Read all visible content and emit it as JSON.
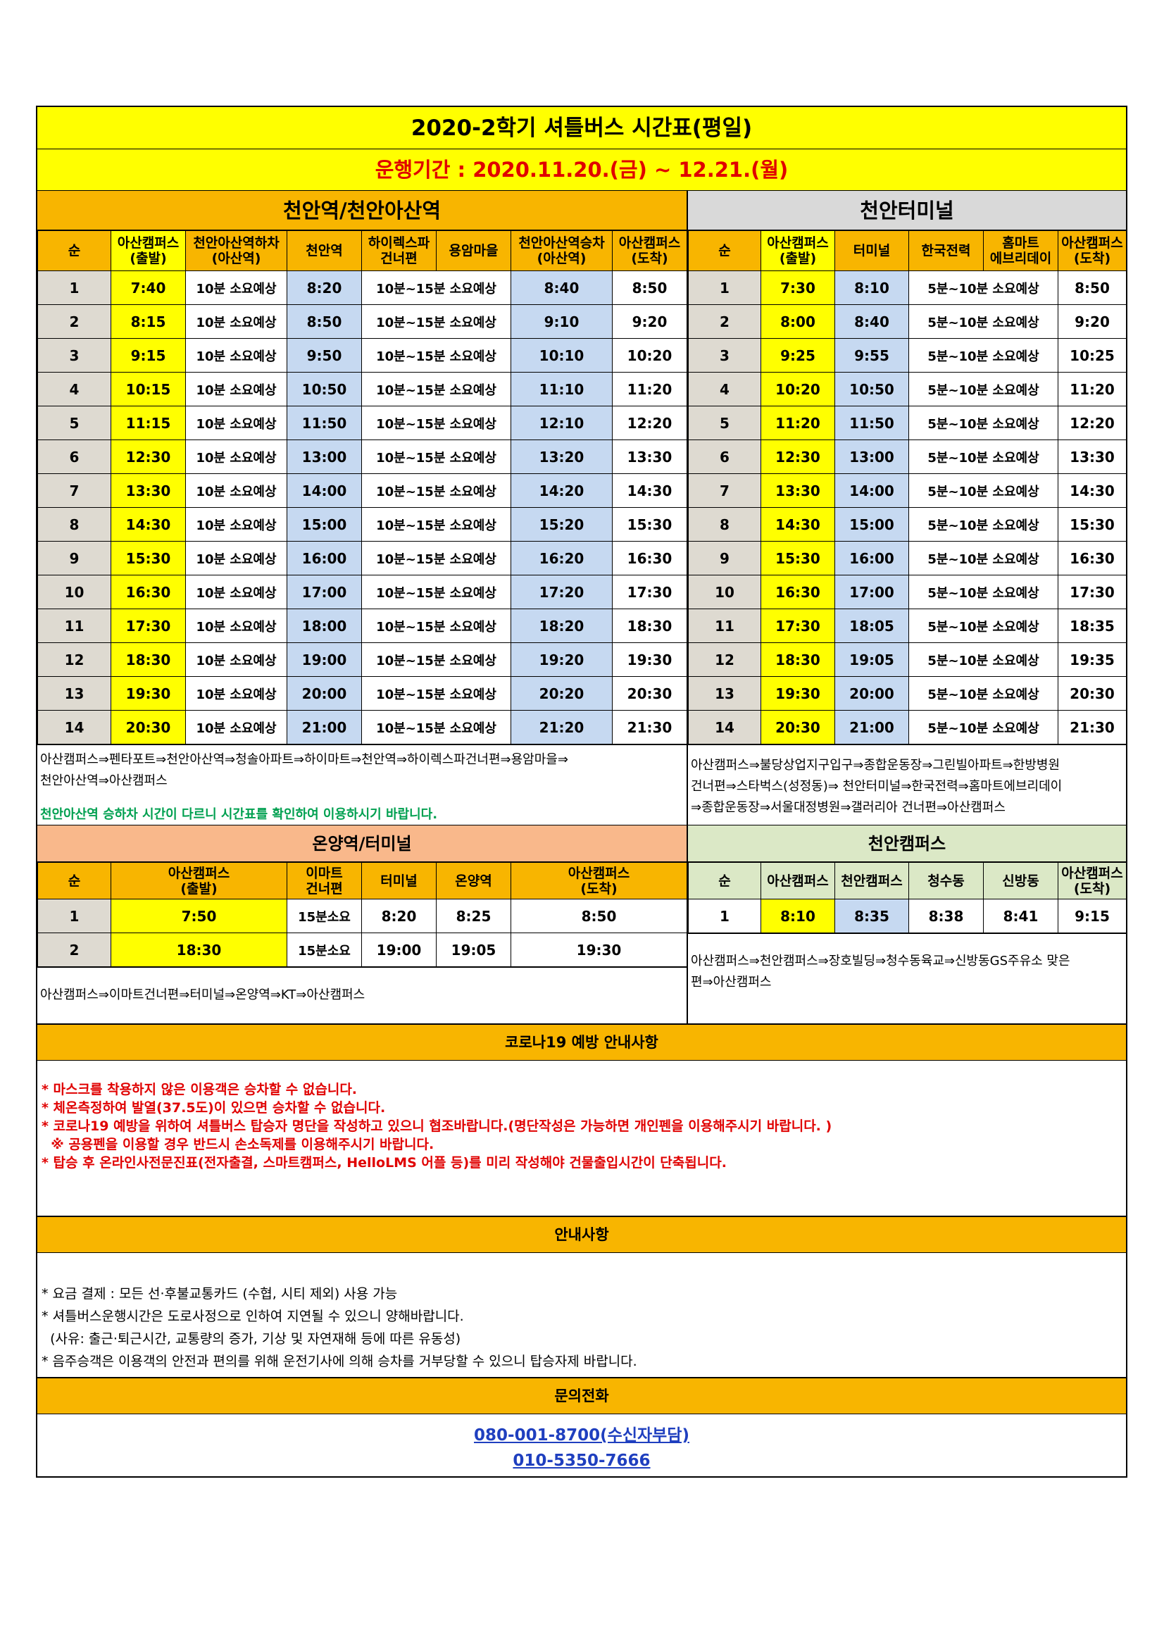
{
  "title": "2020-2학기 셔틀버스 시간표(평일)",
  "period": "운행기간 : 2020.11.20.(금) ~ 12.21.(월)",
  "cheonan_station": {
    "section_title": "천안역/천안아산역",
    "headers": [
      "순",
      "아산캠퍼스\n(출발)",
      "천안아산역하차\n(아산역)",
      "천안역",
      "하이렉스파\n건너편",
      "용암마을",
      "천안아산역승차\n(아산역)",
      "아산캠퍼스\n(도착)"
    ],
    "rows": [
      [
        "1",
        "7:40",
        "10분 소요예상",
        "8:20",
        "10분~15분 소요예상",
        "8:40",
        "8:50"
      ],
      [
        "2",
        "8:15",
        "10분 소요예상",
        "8:50",
        "10분~15분 소요예상",
        "9:10",
        "9:20"
      ],
      [
        "3",
        "9:15",
        "10분 소요예상",
        "9:50",
        "10분~15분 소요예상",
        "10:10",
        "10:20"
      ],
      [
        "4",
        "10:15",
        "10분 소요예상",
        "10:50",
        "10분~15분 소요예상",
        "11:10",
        "11:20"
      ],
      [
        "5",
        "11:15",
        "10분 소요예상",
        "11:50",
        "10분~15분 소요예상",
        "12:10",
        "12:20"
      ],
      [
        "6",
        "12:30",
        "10분 소요예상",
        "13:00",
        "10분~15분 소요예상",
        "13:20",
        "13:30"
      ],
      [
        "7",
        "13:30",
        "10분 소요예상",
        "14:00",
        "10분~15분 소요예상",
        "14:20",
        "14:30"
      ],
      [
        "8",
        "14:30",
        "10분 소요예상",
        "15:00",
        "10분~15분 소요예상",
        "15:20",
        "15:30"
      ],
      [
        "9",
        "15:30",
        "10분 소요예상",
        "16:00",
        "10분~15분 소요예상",
        "16:20",
        "16:30"
      ],
      [
        "10",
        "16:30",
        "10분 소요예상",
        "17:00",
        "10분~15분 소요예상",
        "17:20",
        "17:30"
      ],
      [
        "11",
        "17:30",
        "10분 소요예상",
        "18:00",
        "10분~15분 소요예상",
        "18:20",
        "18:30"
      ],
      [
        "12",
        "18:30",
        "10분 소요예상",
        "19:00",
        "10분~15분 소요예상",
        "19:20",
        "19:30"
      ],
      [
        "13",
        "19:30",
        "10분 소요예상",
        "20:00",
        "10분~15분 소요예상",
        "20:20",
        "20:30"
      ],
      [
        "14",
        "20:30",
        "10분 소요예상",
        "21:00",
        "10분~15분 소요예상",
        "21:20",
        "21:30"
      ]
    ],
    "route_line1": "아산캠퍼스⇒펜타포트⇒천안아산역⇒청솔아파트⇒하이마트⇒천안역⇒하이렉스파건너편⇒용암마을⇒",
    "route_line2": "천안아산역⇒아산캠퍼스",
    "notice": "천안아산역 승하차 시간이 다르니 시간표를 확인하여 이용하시기 바랍니다."
  },
  "terminal": {
    "section_title": "천안터미널",
    "headers": [
      "순",
      "아산캠퍼스\n(출발)",
      "터미널",
      "한국전력",
      "홈마트\n에브리데이",
      "아산캠퍼스\n(도착)"
    ],
    "rows": [
      [
        "1",
        "7:30",
        "8:10",
        "5분~10분 소요예상",
        "8:50"
      ],
      [
        "2",
        "8:00",
        "8:40",
        "5분~10분 소요예상",
        "9:20"
      ],
      [
        "3",
        "9:25",
        "9:55",
        "5분~10분 소요예상",
        "10:25"
      ],
      [
        "4",
        "10:20",
        "10:50",
        "5분~10분 소요예상",
        "11:20"
      ],
      [
        "5",
        "11:20",
        "11:50",
        "5분~10분 소요예상",
        "12:20"
      ],
      [
        "6",
        "12:30",
        "13:00",
        "5분~10분 소요예상",
        "13:30"
      ],
      [
        "7",
        "13:30",
        "14:00",
        "5분~10분 소요예상",
        "14:30"
      ],
      [
        "8",
        "14:30",
        "15:00",
        "5분~10분 소요예상",
        "15:30"
      ],
      [
        "9",
        "15:30",
        "16:00",
        "5분~10분 소요예상",
        "16:30"
      ],
      [
        "10",
        "16:30",
        "17:00",
        "5분~10분 소요예상",
        "17:30"
      ],
      [
        "11",
        "17:30",
        "18:05",
        "5분~10분 소요예상",
        "18:35"
      ],
      [
        "12",
        "18:30",
        "19:05",
        "5분~10분 소요예상",
        "19:35"
      ],
      [
        "13",
        "19:30",
        "20:00",
        "5분~10분 소요예상",
        "20:30"
      ],
      [
        "14",
        "20:30",
        "21:00",
        "5분~10분 소요예상",
        "21:30"
      ]
    ],
    "route_line1": "아산캠퍼스⇒불당상업지구입구⇒종합운동장⇒그린빌아파트⇒한방병원",
    "route_line2": "건너편⇒스타벅스(성정동)⇒ 천안터미널⇒한국전력⇒홈마트에브리데이",
    "route_line3": "⇒종합운동장⇒서울대정병원⇒갤러리아 건너편⇒아산캠퍼스"
  },
  "onyang": {
    "section_title": "온양역/터미널",
    "headers": [
      "순",
      "아산캠퍼스\n(출발)",
      "이마트\n건너편",
      "터미널",
      "온양역",
      "아산캠퍼스\n(도착)"
    ],
    "rows": [
      [
        "1",
        "7:50",
        "15분소요",
        "8:20",
        "8:25",
        "8:50"
      ],
      [
        "2",
        "18:30",
        "15분소요",
        "19:00",
        "19:05",
        "19:30"
      ]
    ],
    "route": "아산캠퍼스⇒이마트건너편⇒터미널⇒온양역⇒KT⇒아산캠퍼스"
  },
  "cheonan_campus": {
    "section_title": "천안캠퍼스",
    "headers": [
      "순",
      "아산캠퍼스",
      "천안캠퍼스",
      "청수동",
      "신방동",
      "아산캠퍼스\n(도착)"
    ],
    "rows": [
      [
        "1",
        "8:10",
        "8:35",
        "8:38",
        "8:41",
        "9:15"
      ]
    ],
    "route_line1": "아산캠퍼스⇒천안캠퍼스⇒장호빌딩⇒청수동육교⇒신방동GS주유소 맞은",
    "route_line2": "편⇒아산캠퍼스"
  },
  "covid": {
    "title": "코로나19 예방 안내사항",
    "lines": [
      "* 마스크를 착용하지 않은 이용객은 승차할 수 없습니다.",
      "* 체온측정하여 발열(37.5도)이 있으면 승차할 수 없습니다.",
      "* 코로나19 예방을 위하여 셔틀버스 탑승자 명단을 작성하고 있으니 협조바랍니다.(명단작성은 가능하면 개인펜을 이용해주시기 바랍니다. )",
      "  ※ 공용펜을 이용할 경우 반드시 손소독제를 이용해주시기 바랍니다.",
      "* 탑승 후 온라인사전문진표(전자출결, 스마트캠퍼스, HelloLMS 어플 등)를 미리 작성해야 건물출입시간이 단축됩니다."
    ]
  },
  "info": {
    "title": "안내사항",
    "lines": [
      "* 요금 결제 : 모든 선·후불교통카드 (수협, 시티 제외) 사용 가능",
      "* 셔틀버스운행시간은 도로사정으로 인하여 지연될 수 있으니 양해바랍니다.",
      "  (사유: 출근·퇴근시간, 교통량의 증가, 기상 및 자연재해 등에 따른 유동성)",
      "* 음주승객은 이용객의 안전과 편의를 위해 운전기사에 의해 승차를 거부당할 수 있으니 탑승자제 바랍니다."
    ]
  },
  "contact": {
    "title": "문의전화",
    "phone1": "080-001-8700(수신자부담)",
    "phone2": "010-5350-7666"
  },
  "colors": {
    "yellow": "#ffff00",
    "orange": "#f8b500",
    "blue_cell": "#c6d9f1",
    "grey_cell": "#dedad1",
    "green_section": "#dbe8c6",
    "salmon_section": "#f9b88b",
    "red_text": "#e00000",
    "green_text": "#00a050",
    "link_blue": "#1f3fbf"
  }
}
